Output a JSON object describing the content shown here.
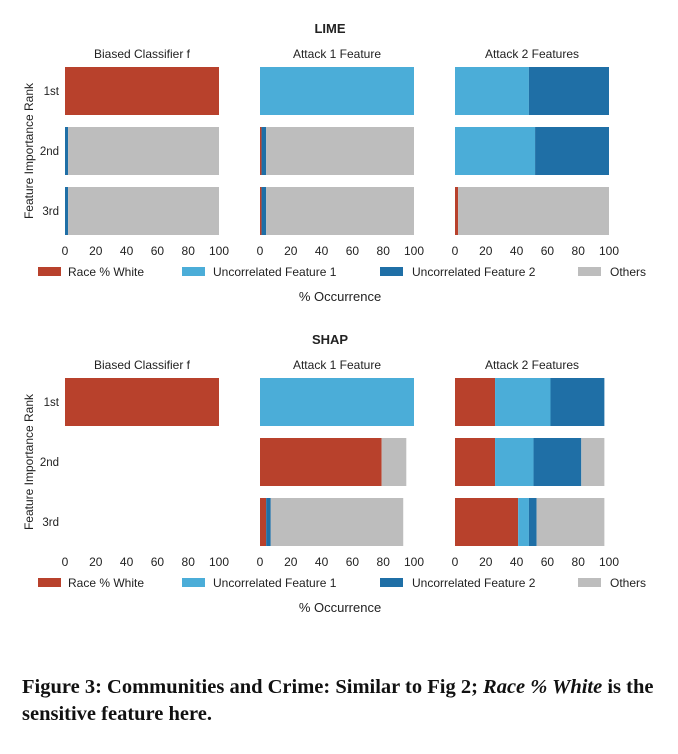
{
  "chart_data": [
    {
      "type": "bar",
      "orientation": "horizontal",
      "stacked": true,
      "title": "LIME",
      "ylabel": "Feature Importance Rank",
      "xlabel": "% Occurrence",
      "xlim": [
        0,
        100
      ],
      "xticks": [
        "0",
        "20",
        "40",
        "60",
        "80",
        "100"
      ],
      "categories": [
        "1st",
        "2nd",
        "3rd"
      ],
      "legend": {
        "placement": "bottom",
        "entries": [
          "Race % White",
          "Uncorrelated Feature 1",
          "Uncorrelated Feature 2",
          "Others"
        ]
      },
      "panels": [
        {
          "title": "Biased Classifier f",
          "series": [
            {
              "name": "Race % White",
              "values": [
                100,
                0,
                0
              ]
            },
            {
              "name": "Uncorrelated Feature 1",
              "values": [
                0,
                0,
                0
              ]
            },
            {
              "name": "Uncorrelated Feature 2",
              "values": [
                0,
                2,
                2
              ]
            },
            {
              "name": "Others",
              "values": [
                0,
                98,
                98
              ]
            }
          ]
        },
        {
          "title": "Attack 1 Feature",
          "series": [
            {
              "name": "Race % White",
              "values": [
                0,
                1,
                1
              ]
            },
            {
              "name": "Uncorrelated Feature 1",
              "values": [
                100,
                0,
                0
              ]
            },
            {
              "name": "Uncorrelated Feature 2",
              "values": [
                0,
                3,
                3
              ]
            },
            {
              "name": "Others",
              "values": [
                0,
                96,
                96
              ]
            }
          ]
        },
        {
          "title": "Attack 2 Features",
          "series": [
            {
              "name": "Race % White",
              "values": [
                0,
                0,
                2
              ]
            },
            {
              "name": "Uncorrelated Feature 1",
              "values": [
                48,
                52,
                0
              ]
            },
            {
              "name": "Uncorrelated Feature 2",
              "values": [
                52,
                48,
                0
              ]
            },
            {
              "name": "Others",
              "values": [
                0,
                0,
                98
              ]
            }
          ]
        }
      ]
    },
    {
      "type": "bar",
      "orientation": "horizontal",
      "stacked": true,
      "title": "SHAP",
      "ylabel": "Feature Importance Rank",
      "xlabel": "% Occurrence",
      "xlim": [
        0,
        100
      ],
      "xticks": [
        "0",
        "20",
        "40",
        "60",
        "80",
        "100"
      ],
      "categories": [
        "1st",
        "2nd",
        "3rd"
      ],
      "legend": {
        "placement": "bottom",
        "entries": [
          "Race % White",
          "Uncorrelated Feature 1",
          "Uncorrelated Feature 2",
          "Others"
        ]
      },
      "panels": [
        {
          "title": "Biased Classifier f",
          "series": [
            {
              "name": "Race % White",
              "values": [
                100,
                0,
                0
              ]
            },
            {
              "name": "Uncorrelated Feature 1",
              "values": [
                0,
                0,
                0
              ]
            },
            {
              "name": "Uncorrelated Feature 2",
              "values": [
                0,
                0,
                0
              ]
            },
            {
              "name": "Others",
              "values": [
                0,
                0,
                0
              ]
            }
          ]
        },
        {
          "title": "Attack 1 Feature",
          "series": [
            {
              "name": "Race % White",
              "values": [
                0,
                79,
                4
              ]
            },
            {
              "name": "Uncorrelated Feature 1",
              "values": [
                100,
                0,
                0
              ]
            },
            {
              "name": "Uncorrelated Feature 2",
              "values": [
                0,
                0,
                3
              ]
            },
            {
              "name": "Others",
              "values": [
                0,
                16,
                86
              ]
            }
          ]
        },
        {
          "title": "Attack 2 Features",
          "series": [
            {
              "name": "Race % White",
              "values": [
                26,
                26,
                41
              ]
            },
            {
              "name": "Uncorrelated Feature 1",
              "values": [
                36,
                25,
                7
              ]
            },
            {
              "name": "Uncorrelated Feature 2",
              "values": [
                35,
                31,
                5
              ]
            },
            {
              "name": "Others",
              "values": [
                0,
                15,
                44
              ]
            }
          ]
        }
      ]
    }
  ],
  "colors": {
    "Race % White": "#b8412c",
    "Uncorrelated Feature 1": "#4badd8",
    "Uncorrelated Feature 2": "#1f6fa6",
    "Others": "#bdbdbd"
  },
  "caption": {
    "prefix": "Figure 3: Communities and Crime: Similar to Fig 2; ",
    "emphasis": "Race % White",
    "suffix": " is the sensitive feature here."
  }
}
